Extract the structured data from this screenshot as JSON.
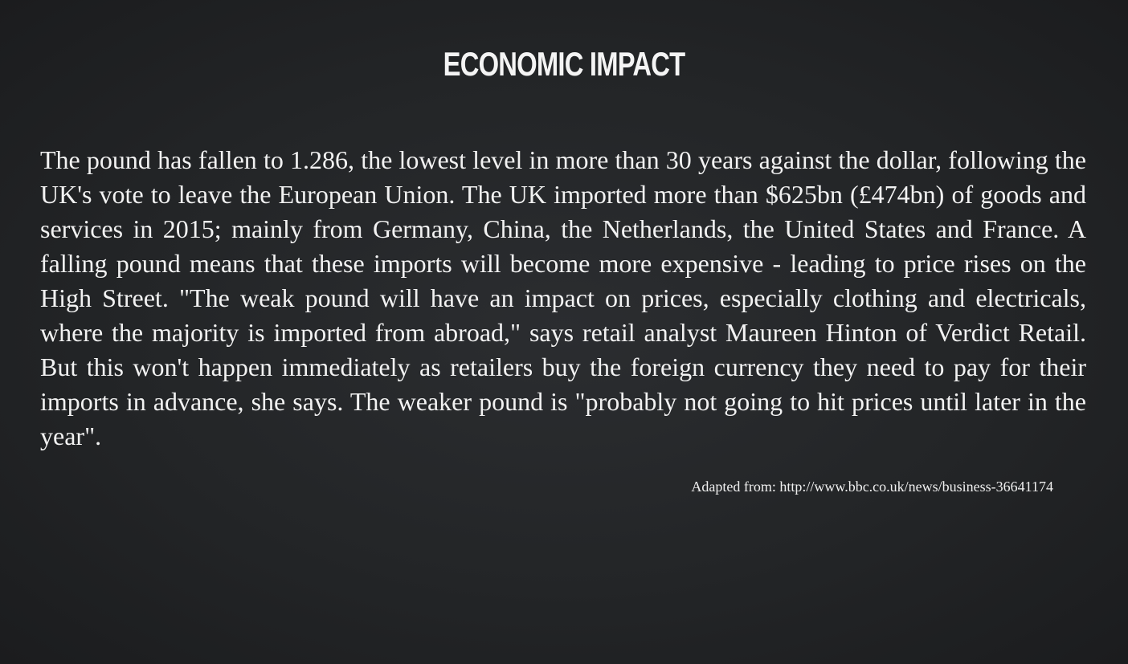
{
  "slide": {
    "title": "ECONOMIC IMPACT",
    "body": "The pound has fallen to 1.286, the lowest level in more than 30 years against the dollar, following the UK's vote to leave the European Union. The UK imported more than $625bn (£474bn) of goods and services in 2015; mainly from Germany, China, the Netherlands, the United States and France. A falling pound means that these imports will become more expensive - leading to price rises on the High Street. \"The weak pound will have an impact on prices, especially clothing and electricals, where the majority is imported from abroad,\" says retail analyst Maureen Hinton of Verdict Retail. But this won't happen immediately as retailers buy the foreign currency they need to pay for their imports in advance, she says. The weaker pound is \"probably not going to hit prices until later in the year\".",
    "source": "Adapted from: http://www.bbc.co.uk/news/business-36641174"
  },
  "colors": {
    "background": "#232527",
    "text": "#f2f2f2"
  }
}
